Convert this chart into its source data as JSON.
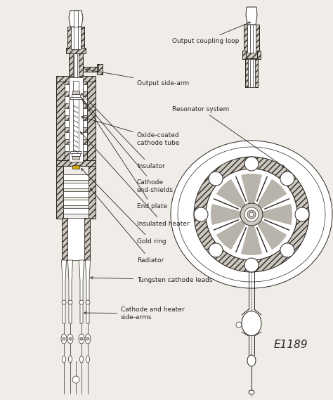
{
  "bg_color": "#f0ede8",
  "line_color": "#2a2520",
  "labels": {
    "output_coupling_loop": "Output coupling loop",
    "output_side_arm": "Output side-arm",
    "resonator_system": "Resonator system",
    "oxide_coated": "Oxide-coated\ncathode tube",
    "insulator": "Insulator",
    "cathode_end_shields": "Cathode\nend-shields",
    "end_plate": "End plate",
    "insulated_heater": "Insulated heater",
    "gold_ring": "Gold ring",
    "radiator": "Radiator",
    "tungsten": "Tungsten cathode leads",
    "cathode_heater": "Cathode and heater\nside-arms",
    "label_id": "E1189"
  },
  "font_size_labels": 6.5,
  "font_size_id": 11,
  "hatch_fc": "#ccc8c0",
  "hatch_fc2": "#b8b4ac"
}
